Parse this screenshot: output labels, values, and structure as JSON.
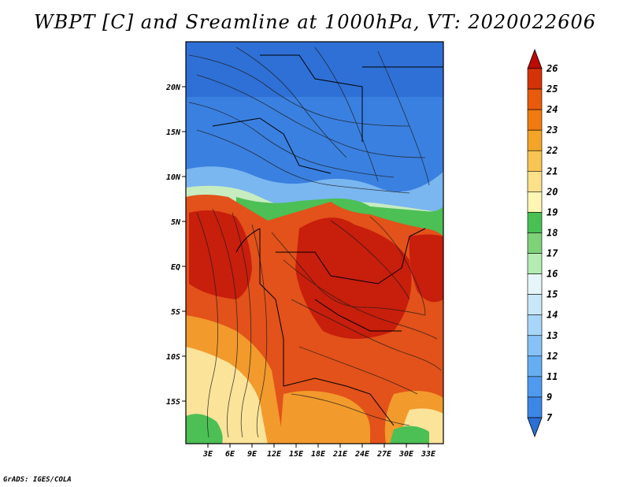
{
  "title": "WBPT [C] and Sreamline at 1000hPa, VT: 2020022606",
  "footer": "GrADS: IGES/COLA",
  "lat_labels": [
    "20N",
    "15N",
    "10N",
    "5N",
    "EQ",
    "5S",
    "10S",
    "15S"
  ],
  "lon_labels": [
    "3E",
    "6E",
    "9E",
    "12E",
    "15E",
    "18E",
    "21E",
    "24E",
    "27E",
    "30E",
    "33E"
  ],
  "colorbar": {
    "levels": [
      "7",
      "9",
      "11",
      "12",
      "13",
      "14",
      "15",
      "16",
      "17",
      "18",
      "19",
      "20",
      "21",
      "22",
      "23",
      "24",
      "25",
      "26"
    ],
    "colors": [
      "#2a6fd6",
      "#3c86e6",
      "#4f9aee",
      "#66aef2",
      "#86c2f6",
      "#a8d6f8",
      "#c8e8fa",
      "#e6f6f8",
      "#b4ecb2",
      "#7ed27a",
      "#48c052",
      "#fff6b4",
      "#fde08a",
      "#f8c454",
      "#f4a428",
      "#f07a10",
      "#e85a0c",
      "#d63208",
      "#bc0a04"
    ]
  },
  "map_colors": {
    "cold_deep": "#2e6fd4",
    "cold": "#3f86e4",
    "cool": "#7ab6f0",
    "mild": "#c6ecc0",
    "green": "#4cbf55",
    "yellow": "#fbe39a",
    "orange": "#f29a2c",
    "warm": "#e2521a",
    "hot": "#c81e0c"
  }
}
